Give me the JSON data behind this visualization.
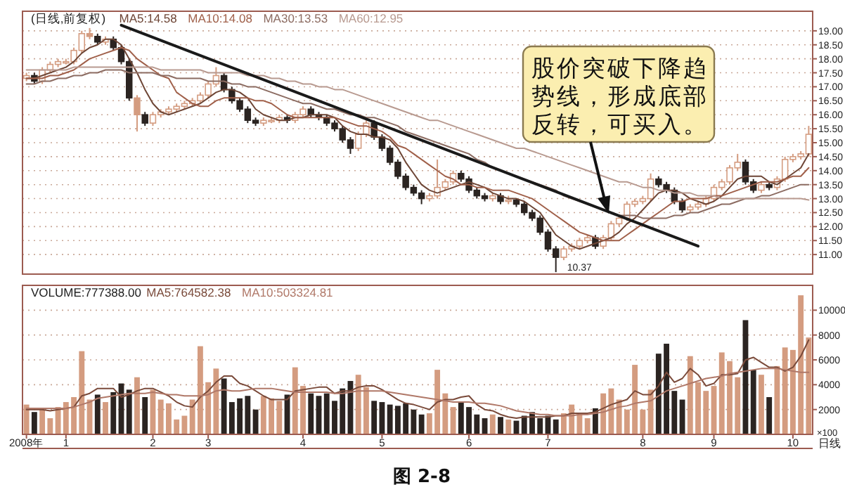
{
  "chart_data": [
    {
      "type": "candlestick",
      "title": "(日线,前复权)",
      "legend": "top left",
      "grid": "y",
      "tick_labels": "y",
      "categories": [
        null,
        null,
        null,
        null,
        null,
        null,
        null,
        null,
        null,
        null,
        null,
        null,
        null,
        null,
        null,
        null,
        null,
        null,
        null,
        null,
        null,
        null,
        null,
        null,
        null,
        null,
        null,
        null,
        null,
        null,
        null,
        null,
        null,
        null,
        null,
        null,
        null,
        null,
        null,
        null,
        null,
        null,
        null,
        null,
        null,
        null,
        null,
        null,
        null,
        null,
        null,
        null,
        null,
        null,
        null,
        null,
        null,
        null,
        null,
        null,
        null,
        null,
        null,
        null,
        null,
        null,
        null,
        null,
        null,
        null,
        null,
        null,
        null,
        null,
        null,
        null,
        null,
        null,
        null,
        null,
        null,
        null,
        null,
        null,
        null,
        null,
        null,
        null,
        null,
        null,
        null,
        null,
        null,
        null,
        null,
        null,
        null,
        null,
        null,
        null
      ],
      "ylim": [
        10.3,
        19.7
      ],
      "yticks": [
        {
          "value": 11,
          "label": "11.00"
        },
        {
          "value": 11.5,
          "label": "11.50"
        },
        {
          "value": 12,
          "label": "12.00"
        },
        {
          "value": 12.5,
          "label": "12.50"
        },
        {
          "value": 13,
          "label": "13.00"
        },
        {
          "value": 13.5,
          "label": "13.50"
        },
        {
          "value": 14,
          "label": "14.00"
        },
        {
          "value": 14.5,
          "label": "14.50"
        },
        {
          "value": 15,
          "label": "15.00"
        },
        {
          "value": 15.5,
          "label": "15.50"
        },
        {
          "value": 16,
          "label": "16.00"
        },
        {
          "value": 16.5,
          "label": "16.50"
        },
        {
          "value": 17,
          "label": "17.00"
        },
        {
          "value": 17.5,
          "label": "17.50"
        },
        {
          "value": 18,
          "label": "18.00"
        },
        {
          "value": 18.5,
          "label": "18.50"
        },
        {
          "value": 19,
          "label": "19.00"
        }
      ],
      "colors": [
        "#d49c80",
        "#2b2421",
        "#d49c80",
        "#d49c80",
        "#d49c80",
        "#d49c80",
        "#d49c80",
        "#d49c80",
        "#d49c80",
        "#2b2421",
        "#d49c80",
        "#2b2421",
        "#2b2421",
        "#2b2421",
        "#d49c80",
        "#2b2421",
        "#d49c80",
        "#d49c80",
        "#d49c80",
        "#d49c80",
        "#d49c80",
        "#d49c80",
        "#d49c80",
        "#d49c80",
        "#d49c80",
        "#2b2421",
        "#2b2421",
        "#2b2421",
        "#2b2421",
        "#2b2421",
        "#d49c80",
        "#d49c80",
        "#d49c80",
        "#2b2421",
        "#d49c80",
        "#d49c80",
        "#2b2421",
        "#2b2421",
        "#2b2421",
        "#2b2421",
        "#2b2421",
        "#2b2421",
        "#d49c80",
        "#d49c80",
        "#2b2421",
        "#2b2421",
        "#2b2421",
        "#2b2421",
        "#2b2421",
        "#2b2421",
        "#2b2421",
        "#d49c80",
        "#d49c80",
        "#d49c80",
        "#d49c80",
        "#2b2421",
        "#2b2421",
        "#2b2421",
        "#2b2421",
        "#d49c80",
        "#2b2421",
        "#d49c80",
        "#2b2421",
        "#2b2421",
        "#2b2421",
        "#2b2421",
        "#2b2421",
        "#2b2421",
        "#d49c80",
        "#d49c80",
        "#d49c80",
        "#d49c80",
        "#2b2421",
        "#d49c80",
        "#d49c80",
        "#d49c80",
        "#d49c80",
        "#d49c80",
        "#d49c80",
        "#d49c80",
        "#2b2421",
        "#2b2421",
        "#2b2421",
        "#2b2421",
        "#d49c80",
        "#d49c80",
        "#d49c80",
        "#d49c80",
        "#d49c80",
        "#d49c80",
        "#d49c80",
        "#2b2421",
        "#2b2421",
        "#d49c80",
        "#2b2421",
        "#d49c80",
        "#d49c80",
        "#d49c80",
        "#d49c80",
        "#d49c80"
      ],
      "ohlc": [
        [
          17.3,
          17.5,
          17.2,
          17.4
        ],
        [
          17.4,
          17.5,
          17.1,
          17.2
        ],
        [
          17.2,
          17.7,
          17.1,
          17.6
        ],
        [
          17.6,
          17.9,
          17.5,
          17.8
        ],
        [
          17.8,
          18.0,
          17.7,
          17.9
        ],
        [
          17.9,
          18.0,
          17.8,
          17.9
        ],
        [
          17.9,
          18.4,
          17.8,
          18.3
        ],
        [
          18.3,
          19.0,
          18.2,
          18.9
        ],
        [
          18.9,
          19.1,
          18.7,
          18.8
        ],
        [
          18.8,
          18.9,
          18.5,
          18.6
        ],
        [
          18.6,
          18.8,
          18.5,
          18.7
        ],
        [
          18.7,
          18.8,
          18.3,
          18.4
        ],
        [
          18.4,
          18.5,
          17.8,
          17.9
        ],
        [
          17.9,
          18.0,
          16.5,
          16.6
        ],
        [
          16.6,
          16.7,
          15.4,
          16.0
        ],
        [
          16.0,
          16.1,
          15.6,
          15.7
        ],
        [
          15.7,
          16.1,
          15.6,
          16.0
        ],
        [
          16.0,
          16.2,
          15.9,
          16.1
        ],
        [
          16.1,
          16.3,
          16.0,
          16.2
        ],
        [
          16.2,
          16.4,
          16.1,
          16.3
        ],
        [
          16.3,
          16.5,
          16.2,
          16.4
        ],
        [
          16.4,
          16.6,
          16.3,
          16.5
        ],
        [
          16.5,
          16.8,
          16.4,
          16.7
        ],
        [
          16.7,
          17.2,
          16.6,
          17.1
        ],
        [
          17.1,
          17.7,
          17.0,
          17.4
        ],
        [
          17.4,
          17.5,
          16.8,
          16.9
        ],
        [
          16.9,
          17.0,
          16.4,
          16.5
        ],
        [
          16.5,
          16.6,
          16.1,
          16.2
        ],
        [
          16.2,
          16.3,
          15.7,
          15.8
        ],
        [
          15.8,
          15.9,
          15.6,
          15.7
        ],
        [
          15.7,
          15.9,
          15.6,
          15.8
        ],
        [
          15.8,
          15.9,
          15.7,
          15.8
        ],
        [
          15.8,
          16.0,
          15.7,
          15.9
        ],
        [
          15.9,
          16.0,
          15.7,
          15.8
        ],
        [
          15.8,
          16.1,
          15.7,
          16.0
        ],
        [
          16.0,
          16.3,
          15.9,
          16.2
        ],
        [
          16.2,
          16.3,
          15.9,
          16.0
        ],
        [
          16.0,
          16.1,
          15.8,
          15.9
        ],
        [
          15.9,
          16.0,
          15.6,
          15.7
        ],
        [
          15.7,
          15.8,
          15.4,
          15.5
        ],
        [
          15.5,
          15.6,
          15.0,
          15.1
        ],
        [
          15.1,
          15.2,
          14.6,
          14.8
        ],
        [
          14.8,
          15.4,
          14.7,
          15.3
        ],
        [
          15.3,
          15.8,
          15.2,
          15.7
        ],
        [
          15.7,
          15.8,
          15.1,
          15.2
        ],
        [
          15.2,
          15.3,
          14.7,
          14.8
        ],
        [
          14.8,
          14.9,
          14.2,
          14.3
        ],
        [
          14.3,
          14.4,
          13.7,
          13.8
        ],
        [
          13.8,
          13.9,
          13.3,
          13.4
        ],
        [
          13.4,
          13.5,
          13.1,
          13.2
        ],
        [
          13.2,
          13.3,
          12.8,
          13.0
        ],
        [
          13.0,
          13.2,
          12.9,
          13.1
        ],
        [
          13.1,
          14.4,
          13.0,
          13.4
        ],
        [
          13.4,
          13.7,
          13.3,
          13.6
        ],
        [
          13.6,
          14.0,
          13.5,
          13.9
        ],
        [
          13.9,
          14.0,
          13.6,
          13.7
        ],
        [
          13.7,
          13.8,
          13.2,
          13.3
        ],
        [
          13.3,
          13.4,
          13.0,
          13.1
        ],
        [
          13.1,
          13.2,
          12.9,
          13.0
        ],
        [
          13.0,
          13.2,
          12.9,
          13.1
        ],
        [
          13.1,
          13.2,
          12.8,
          12.9
        ],
        [
          12.9,
          13.1,
          12.8,
          12.95
        ],
        [
          12.95,
          13.0,
          12.7,
          12.8
        ],
        [
          12.8,
          12.9,
          12.4,
          12.5
        ],
        [
          12.5,
          12.6,
          12.2,
          12.3
        ],
        [
          12.3,
          12.4,
          11.7,
          11.8
        ],
        [
          11.8,
          11.9,
          11.1,
          11.2
        ],
        [
          11.2,
          11.3,
          10.37,
          10.9
        ],
        [
          10.9,
          11.3,
          10.8,
          11.2
        ],
        [
          11.2,
          11.4,
          11.1,
          11.3
        ],
        [
          11.3,
          11.6,
          11.2,
          11.5
        ],
        [
          11.5,
          11.7,
          11.4,
          11.6
        ],
        [
          11.6,
          11.7,
          11.2,
          11.3
        ],
        [
          11.3,
          11.7,
          11.2,
          11.6
        ],
        [
          11.6,
          12.2,
          11.5,
          12.1
        ],
        [
          12.1,
          12.4,
          12.0,
          12.3
        ],
        [
          12.3,
          12.9,
          12.2,
          12.8
        ],
        [
          12.8,
          13.0,
          12.7,
          12.9
        ],
        [
          12.9,
          13.1,
          12.8,
          13.0
        ],
        [
          13.0,
          13.9,
          12.9,
          13.7
        ],
        [
          13.7,
          13.8,
          13.4,
          13.5
        ],
        [
          13.5,
          13.6,
          13.2,
          13.3
        ],
        [
          13.3,
          13.4,
          12.8,
          12.9
        ],
        [
          12.9,
          13.0,
          12.5,
          12.6
        ],
        [
          12.6,
          12.8,
          12.5,
          12.7
        ],
        [
          12.7,
          12.9,
          12.6,
          12.8
        ],
        [
          12.8,
          13.1,
          12.7,
          13.0
        ],
        [
          13.0,
          13.5,
          12.9,
          13.4
        ],
        [
          13.4,
          13.7,
          13.3,
          13.6
        ],
        [
          13.6,
          14.2,
          13.5,
          14.1
        ],
        [
          14.1,
          14.6,
          14.0,
          14.3
        ],
        [
          14.3,
          14.4,
          13.5,
          13.6
        ],
        [
          13.6,
          13.7,
          13.2,
          13.3
        ],
        [
          13.3,
          13.6,
          13.2,
          13.5
        ],
        [
          13.5,
          13.6,
          13.3,
          13.4
        ],
        [
          13.4,
          13.8,
          13.3,
          13.7
        ],
        [
          13.7,
          14.5,
          13.6,
          14.4
        ],
        [
          14.4,
          14.6,
          14.3,
          14.5
        ],
        [
          14.5,
          14.7,
          14.4,
          14.6
        ],
        [
          14.6,
          15.6,
          14.5,
          15.3
        ]
      ],
      "series": [
        {
          "type": "line",
          "name": "MA5:14.58",
          "color": "#6e4636",
          "values": [
            17.3,
            17.3,
            17.4,
            17.5,
            17.6,
            17.7,
            17.9,
            18.2,
            18.4,
            18.5,
            18.7,
            18.7,
            18.5,
            18.0,
            17.5,
            16.9,
            16.4,
            16.1,
            16.0,
            16.1,
            16.2,
            16.3,
            16.4,
            16.6,
            16.8,
            16.9,
            16.9,
            16.8,
            16.6,
            16.2,
            16.0,
            15.9,
            15.8,
            15.8,
            15.9,
            15.9,
            16.0,
            16.0,
            16.0,
            15.9,
            15.6,
            15.4,
            15.3,
            15.3,
            15.2,
            15.2,
            15.1,
            14.8,
            14.3,
            13.9,
            13.5,
            13.3,
            13.2,
            13.3,
            13.4,
            13.5,
            13.6,
            13.5,
            13.4,
            13.2,
            13.1,
            13.0,
            13.0,
            12.9,
            12.7,
            12.5,
            12.1,
            11.7,
            11.5,
            11.3,
            11.2,
            11.3,
            11.4,
            11.5,
            11.6,
            11.8,
            12.1,
            12.3,
            12.6,
            12.9,
            13.2,
            13.3,
            13.3,
            13.2,
            13.0,
            12.9,
            12.8,
            12.9,
            13.1,
            13.4,
            13.7,
            13.8,
            13.8,
            13.8,
            13.6,
            13.5,
            13.7,
            13.9,
            14.1,
            14.6
          ]
        },
        {
          "type": "line",
          "name": "MA10:14.08",
          "color": "#a0604a",
          "values": [
            17.3,
            17.3,
            17.3,
            17.4,
            17.4,
            17.5,
            17.6,
            17.8,
            18.0,
            18.1,
            18.2,
            18.3,
            18.4,
            18.3,
            18.0,
            17.8,
            17.6,
            17.4,
            17.3,
            16.8,
            16.6,
            16.4,
            16.3,
            16.3,
            16.5,
            16.6,
            16.6,
            16.6,
            16.6,
            16.5,
            16.5,
            16.4,
            16.2,
            16.0,
            15.9,
            15.9,
            15.9,
            15.9,
            15.9,
            15.9,
            15.8,
            15.7,
            15.6,
            15.6,
            15.5,
            15.4,
            15.2,
            14.9,
            14.8,
            14.6,
            14.4,
            14.2,
            14.0,
            13.8,
            13.7,
            13.5,
            13.5,
            13.4,
            13.4,
            13.3,
            13.3,
            13.3,
            13.2,
            13.1,
            13.0,
            12.8,
            12.6,
            12.4,
            12.2,
            12.0,
            11.8,
            11.7,
            11.6,
            11.5,
            11.5,
            11.5,
            11.7,
            11.9,
            12.1,
            12.3,
            12.5,
            12.7,
            12.9,
            12.9,
            13.0,
            13.0,
            13.0,
            13.1,
            13.1,
            13.2,
            13.3,
            13.4,
            13.5,
            13.6,
            13.6,
            13.6,
            13.7,
            13.8,
            13.8,
            14.1
          ]
        },
        {
          "type": "line",
          "name": "MA30:13.53",
          "color": "#8c6c62",
          "values": [
            17.1,
            17.1,
            17.2,
            17.2,
            17.3,
            17.3,
            17.4,
            17.4,
            17.5,
            17.5,
            17.6,
            17.6,
            17.6,
            17.5,
            17.5,
            17.5,
            17.5,
            17.4,
            17.4,
            17.3,
            17.3,
            17.3,
            17.3,
            17.2,
            17.2,
            17.2,
            17.1,
            17.1,
            17.0,
            17.0,
            16.9,
            16.8,
            16.7,
            16.6,
            16.5,
            16.4,
            16.4,
            16.3,
            16.2,
            16.2,
            16.1,
            16.0,
            16.0,
            15.9,
            15.9,
            15.8,
            15.7,
            15.6,
            15.4,
            15.3,
            15.2,
            15.1,
            15.0,
            14.9,
            14.8,
            14.7,
            14.6,
            14.4,
            14.3,
            14.1,
            14.0,
            13.9,
            13.8,
            13.7,
            13.6,
            13.5,
            13.4,
            13.3,
            13.1,
            13.0,
            12.9,
            12.8,
            12.7,
            12.6,
            12.5,
            12.4,
            12.4,
            12.4,
            12.3,
            12.3,
            12.3,
            12.3,
            12.4,
            12.4,
            12.5,
            12.5,
            12.6,
            12.7,
            12.8,
            12.8,
            12.9,
            13.0,
            13.0,
            13.1,
            13.1,
            13.2,
            13.3,
            13.4,
            13.5,
            13.5
          ]
        },
        {
          "type": "line",
          "name": "MA60:12.95",
          "color": "#b89a90",
          "values": [
            17.6,
            17.6,
            17.6,
            17.6,
            17.6,
            17.6,
            17.7,
            17.7,
            17.7,
            17.7,
            17.7,
            17.7,
            17.7,
            17.7,
            17.7,
            17.7,
            17.7,
            17.6,
            17.6,
            17.6,
            17.6,
            17.6,
            17.6,
            17.5,
            17.5,
            17.5,
            17.5,
            17.5,
            17.4,
            17.4,
            17.4,
            17.3,
            17.3,
            17.2,
            17.2,
            17.1,
            17.1,
            17.0,
            17.0,
            16.9,
            16.9,
            16.8,
            16.7,
            16.6,
            16.5,
            16.4,
            16.3,
            16.2,
            16.1,
            16.0,
            15.9,
            15.8,
            15.8,
            15.7,
            15.6,
            15.5,
            15.4,
            15.3,
            15.2,
            15.1,
            15.0,
            14.9,
            14.8,
            14.8,
            14.7,
            14.6,
            14.5,
            14.4,
            14.3,
            14.2,
            14.1,
            14.0,
            13.9,
            13.8,
            13.7,
            13.6,
            13.6,
            13.5,
            13.4,
            13.4,
            13.3,
            13.3,
            13.2,
            13.2,
            13.2,
            13.1,
            13.1,
            13.1,
            13.0,
            13.0,
            13.0,
            13.0,
            13.0,
            13.0,
            13.0,
            13.0,
            13.0,
            13.0,
            13.0,
            12.95
          ]
        },
        {
          "type": "line",
          "color": "#1a1a1a",
          "values": [
            null,
            null,
            null,
            null,
            null,
            null,
            null,
            null,
            null,
            null,
            null,
            null,
            19.2,
            null,
            null,
            null,
            null,
            null,
            null,
            null,
            null,
            null,
            null,
            null,
            null,
            null,
            null,
            null,
            null,
            null,
            null,
            null,
            null,
            null,
            null,
            null,
            null,
            null,
            null,
            null,
            null,
            null,
            null,
            null,
            null,
            null,
            null,
            null,
            null,
            null,
            null,
            null,
            null,
            null,
            null,
            null,
            null,
            null,
            null,
            null,
            null,
            null,
            null,
            null,
            null,
            null,
            null,
            null,
            null,
            null,
            null,
            null,
            null,
            null,
            null,
            null,
            null,
            null,
            null,
            null,
            null,
            null,
            null,
            null,
            null,
            11.3,
            null,
            null,
            null,
            null,
            null,
            null,
            null,
            null,
            null,
            null,
            null,
            null,
            null,
            null
          ]
        }
      ],
      "annotations": [
        "股价突破下降趋势线，形成底部反转，可买入。",
        "10.37"
      ]
    },
    {
      "type": "bar",
      "title": "VOLUME:777388.00",
      "legend": "top left",
      "grid": "y",
      "categories": [
        "2008年",
        null,
        null,
        null,
        null,
        "1",
        null,
        null,
        null,
        null,
        null,
        null,
        null,
        null,
        null,
        null,
        "2",
        null,
        null,
        null,
        null,
        null,
        null,
        "3",
        null,
        null,
        null,
        null,
        null,
        null,
        null,
        null,
        null,
        null,
        null,
        "4",
        null,
        null,
        null,
        null,
        null,
        null,
        null,
        null,
        null,
        "5",
        null,
        null,
        null,
        null,
        null,
        null,
        null,
        null,
        null,
        null,
        "6",
        null,
        null,
        null,
        null,
        null,
        null,
        null,
        null,
        null,
        "7",
        null,
        null,
        null,
        null,
        null,
        null,
        null,
        null,
        null,
        null,
        null,
        "8",
        null,
        null,
        null,
        null,
        null,
        null,
        null,
        null,
        "9",
        null,
        null,
        null,
        null,
        null,
        null,
        null,
        null,
        null,
        "10",
        null,
        null
      ],
      "ylim": [
        0,
        12000
      ],
      "yticks": [
        2000,
        4000,
        6000,
        8000,
        10000
      ],
      "values": [
        2400,
        1800,
        2000,
        1300,
        2200,
        2600,
        3000,
        6700,
        2800,
        3200,
        2600,
        3400,
        4100,
        3600,
        4600,
        3000,
        3600,
        2800,
        2500,
        1200,
        1500,
        2800,
        7100,
        4200,
        5300,
        4500,
        2600,
        2900,
        3100,
        2000,
        3100,
        2900,
        2700,
        3200,
        5400,
        3900,
        3300,
        3100,
        3300,
        2700,
        3700,
        4300,
        4800,
        3800,
        2700,
        2600,
        2400,
        2300,
        2500,
        2000,
        1600,
        1700,
        5200,
        3300,
        2200,
        2600,
        2200,
        1600,
        1300,
        1600,
        1400,
        1200,
        1100,
        1500,
        1800,
        1300,
        1500,
        1200,
        1700,
        2400,
        1700,
        1300,
        2100,
        3300,
        3700,
        2800,
        2000,
        5600,
        2000,
        3600,
        6500,
        7300,
        3500,
        2800,
        6300,
        4200,
        3500,
        3900,
        6600,
        5900,
        4600,
        9200,
        5200,
        4800,
        3000,
        5500,
        7000,
        6800,
        11200,
        7800
      ],
      "colors": [
        "#d49c80",
        "#2b2421",
        "#d49c80",
        "#d49c80",
        "#d49c80",
        "#d49c80",
        "#d49c80",
        "#d49c80",
        "#d49c80",
        "#2b2421",
        "#d49c80",
        "#2b2421",
        "#2b2421",
        "#2b2421",
        "#d49c80",
        "#2b2421",
        "#d49c80",
        "#d49c80",
        "#d49c80",
        "#d49c80",
        "#d49c80",
        "#d49c80",
        "#d49c80",
        "#d49c80",
        "#d49c80",
        "#2b2421",
        "#2b2421",
        "#2b2421",
        "#2b2421",
        "#2b2421",
        "#d49c80",
        "#d49c80",
        "#d49c80",
        "#2b2421",
        "#d49c80",
        "#d49c80",
        "#2b2421",
        "#2b2421",
        "#2b2421",
        "#2b2421",
        "#2b2421",
        "#2b2421",
        "#d49c80",
        "#d49c80",
        "#2b2421",
        "#2b2421",
        "#2b2421",
        "#2b2421",
        "#2b2421",
        "#2b2421",
        "#2b2421",
        "#d49c80",
        "#d49c80",
        "#d49c80",
        "#d49c80",
        "#2b2421",
        "#2b2421",
        "#2b2421",
        "#2b2421",
        "#d49c80",
        "#2b2421",
        "#d49c80",
        "#2b2421",
        "#2b2421",
        "#2b2421",
        "#2b2421",
        "#2b2421",
        "#2b2421",
        "#d49c80",
        "#d49c80",
        "#d49c80",
        "#d49c80",
        "#2b2421",
        "#d49c80",
        "#d49c80",
        "#d49c80",
        "#d49c80",
        "#d49c80",
        "#d49c80",
        "#d49c80",
        "#2b2421",
        "#2b2421",
        "#2b2421",
        "#2b2421",
        "#d49c80",
        "#d49c80",
        "#d49c80",
        "#d49c80",
        "#d49c80",
        "#d49c80",
        "#d49c80",
        "#2b2421",
        "#2b2421",
        "#d49c80",
        "#2b2421",
        "#d49c80",
        "#d49c80",
        "#d49c80",
        "#d49c80",
        "#d49c80"
      ],
      "series": [
        {
          "type": "line",
          "name": "MA5:764582.38",
          "color": "#7a4a3a",
          "values": [
            2000,
            2000,
            2000,
            1900,
            2000,
            2100,
            2200,
            3100,
            3300,
            3700,
            3700,
            3700,
            3000,
            3200,
            3500,
            3700,
            3700,
            3400,
            3100,
            2600,
            2300,
            2200,
            3000,
            3500,
            4200,
            4700,
            4700,
            4100,
            3900,
            3500,
            3100,
            2800,
            2800,
            2800,
            3500,
            3600,
            3700,
            3800,
            3800,
            3300,
            3500,
            3500,
            3800,
            3900,
            3900,
            3600,
            3200,
            2800,
            2500,
            2400,
            2200,
            2000,
            2600,
            2800,
            2800,
            3000,
            3100,
            2400,
            2000,
            1900,
            1600,
            1400,
            1300,
            1400,
            1400,
            1400,
            1400,
            1500,
            1500,
            1700,
            1700,
            1700,
            1800,
            2100,
            2400,
            2600,
            2800,
            3500,
            3200,
            3200,
            3900,
            5000,
            4200,
            4500,
            5300,
            4800,
            3900,
            4100,
            4800,
            4800,
            4900,
            6000,
            6200,
            5800,
            5400,
            5400,
            5100,
            5400,
            6300,
            7600
          ]
        },
        {
          "type": "line",
          "name": "MA10:503324.81",
          "color": "#b07868",
          "values": [
            2100,
            2100,
            2100,
            2100,
            2100,
            2100,
            2200,
            2400,
            2600,
            2900,
            3000,
            3100,
            3200,
            3300,
            3300,
            3300,
            3400,
            3300,
            3200,
            3200,
            3100,
            3100,
            3100,
            3200,
            3500,
            3600,
            3500,
            3500,
            3600,
            3700,
            3700,
            3700,
            3600,
            3500,
            3400,
            3400,
            3400,
            3400,
            3400,
            3300,
            3300,
            3400,
            3500,
            3500,
            3500,
            3500,
            3400,
            3300,
            3200,
            3100,
            3000,
            2900,
            2800,
            2700,
            2600,
            2600,
            2600,
            2500,
            2500,
            2400,
            2300,
            2100,
            1900,
            1800,
            1700,
            1600,
            1600,
            1500,
            1500,
            1500,
            1600,
            1600,
            1700,
            1800,
            2000,
            2200,
            2300,
            2500,
            2600,
            2700,
            3100,
            3500,
            3700,
            3900,
            4100,
            4300,
            4500,
            4600,
            4700,
            4900,
            5000,
            5100,
            5200,
            5300,
            5300,
            5300,
            5200,
            5100,
            5000,
            5000
          ]
        }
      ],
      "ylabel": "×100",
      "annotations": [
        "日线",
        "图 2-8"
      ]
    }
  ]
}
